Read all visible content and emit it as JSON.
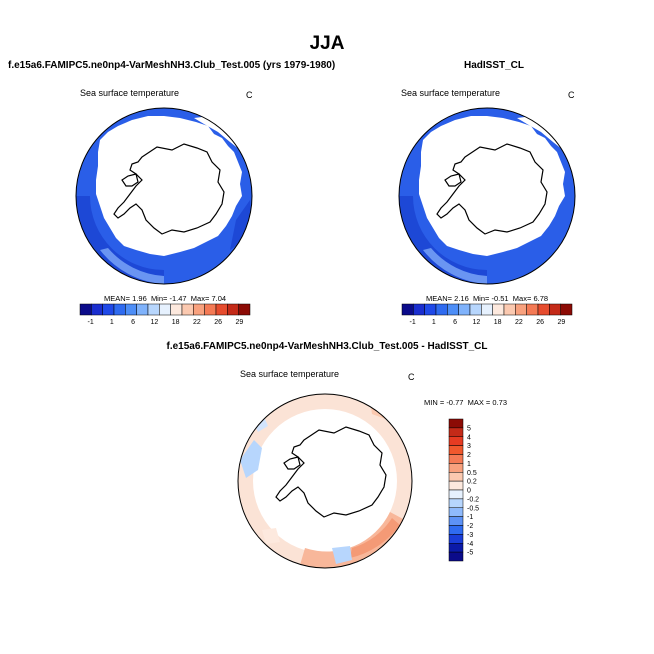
{
  "title": "JJA",
  "panels": {
    "model": {
      "title": "f.e15a6.FAMIPC5.ne0np4-VarMeshNH3.Club_Test.005 (yrs 1979-1980)",
      "variable": "Sea surface temperature",
      "units": "C",
      "stats": {
        "mean_label": "MEAN=",
        "mean": "1.96",
        "min_label": "Min=",
        "min": "-1.47",
        "max_label": "Max=",
        "max": "7.04"
      }
    },
    "obs": {
      "title": "HadISST_CL",
      "variable": "Sea surface temperature",
      "units": "C",
      "stats": {
        "mean_label": "MEAN=",
        "mean": "2.16",
        "min_label": "Min=",
        "min": "-0.51",
        "max_label": "Max=",
        "max": "6.78"
      }
    },
    "diff": {
      "title": "f.e15a6.FAMIPC5.ne0np4-VarMeshNH3.Club_Test.005 - HadISST_CL",
      "variable": "Sea surface temperature",
      "units": "C",
      "stats": {
        "min_label": "MIN =",
        "min": "-0.77",
        "max_label": "MAX =",
        "max": "0.73"
      }
    }
  },
  "colorbar_abs": {
    "labels": [
      "-1",
      "1",
      "6",
      "12",
      "18",
      "22",
      "26",
      "29"
    ],
    "colors": [
      "#0b0b8a",
      "#1a2ecf",
      "#1f49e8",
      "#2f6bf0",
      "#4d8ef7",
      "#7fb2fb",
      "#b7d6fd",
      "#e6f1fe",
      "#fde9de",
      "#fbc9b0",
      "#f8a17e",
      "#f47a55",
      "#e64c2e",
      "#c42a18",
      "#8c0b05"
    ]
  },
  "colorbar_diff": {
    "labels": [
      "5",
      "4",
      "3",
      "2",
      "1",
      "0.5",
      "0.2",
      "0",
      "-0.2",
      "-0.5",
      "-1",
      "-2",
      "-3",
      "-4",
      "-5"
    ],
    "colors": [
      "#8c0b05",
      "#c42a18",
      "#e63b22",
      "#f0582d",
      "#f47a55",
      "#f8a17e",
      "#fbc9b0",
      "#fde9de",
      "#e6f1fe",
      "#b7d6fd",
      "#8fbafc",
      "#5d92f6",
      "#2f6bf0",
      "#1a3dd8",
      "#0b1aa8",
      "#0b0b8a"
    ]
  },
  "colors": {
    "ocean_abs": "#2a5ee8",
    "ocean_abs_dark": "#1d48d6",
    "ocean_warm_ring": "#6a95f2",
    "diff_bg": "#f9f2ee"
  }
}
